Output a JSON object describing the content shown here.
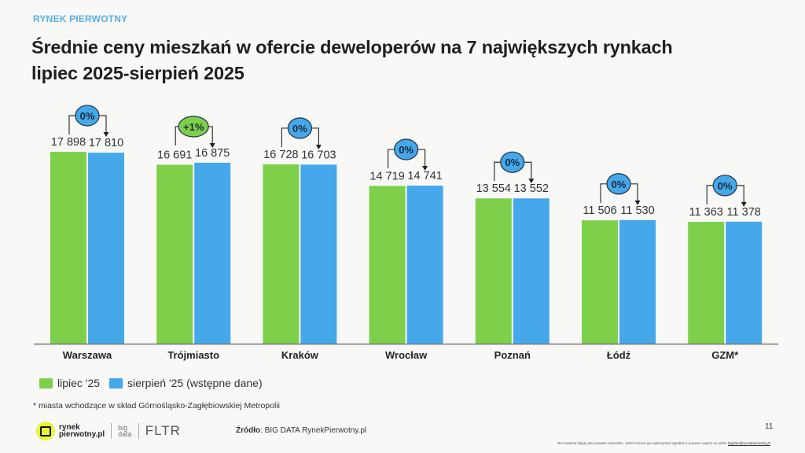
{
  "header": {
    "kicker": "RYNEK PIERWOTNY",
    "title_line1": "Średnie ceny mieszkań w ofercie deweloperów na 7 największych rynkach",
    "title_line2": "lipiec 2025-sierpień 2025"
  },
  "chart_data": {
    "type": "bar",
    "title": "Średnie ceny mieszkań w ofercie deweloperów na 7 największych rynkach lipiec 2025-sierpień 2025",
    "xlabel": "",
    "ylabel": "",
    "ylim": [
      0,
      18000
    ],
    "grid": false,
    "legend_position": "bottom-left",
    "categories": [
      "Warszawa",
      "Trójmiasto",
      "Kraków",
      "Wrocław",
      "Poznań",
      "Łódź",
      "GZM*"
    ],
    "series": [
      {
        "name": "lipiec '25",
        "color": "#7ed04b",
        "values": [
          17898,
          16691,
          16728,
          14719,
          13554,
          11506,
          11363
        ],
        "labels": [
          "17 898",
          "16 691",
          "16 728",
          "14 719",
          "13 554",
          "11 506",
          "11 363"
        ]
      },
      {
        "name": "sierpień '25 (wstępne dane)",
        "color": "#44a8ea",
        "values": [
          17810,
          16875,
          16703,
          14741,
          13552,
          11530,
          11378
        ],
        "labels": [
          "17 810",
          "16 875",
          "16 703",
          "14 741",
          "13 552",
          "11 530",
          "11 378"
        ]
      }
    ],
    "changes": [
      {
        "label": "0%",
        "color": "#44a8ea"
      },
      {
        "label": "+1%",
        "color": "#7ed04b"
      },
      {
        "label": "0%",
        "color": "#44a8ea"
      },
      {
        "label": "0%",
        "color": "#44a8ea"
      },
      {
        "label": "0%",
        "color": "#44a8ea"
      },
      {
        "label": "0%",
        "color": "#44a8ea"
      },
      {
        "label": "0%",
        "color": "#44a8ea"
      }
    ]
  },
  "legend": {
    "items": [
      {
        "label": "lipiec '25",
        "color": "#7ed04b"
      },
      {
        "label": "sierpień '25 (wstępne dane)",
        "color": "#44a8ea"
      }
    ]
  },
  "footnote": "* miasta wchodzące w skład Górnośląsko-Zagłębiowskiej Metropolii",
  "footer": {
    "logo_line1": "rynek",
    "logo_line2": "pierwotny.pl",
    "bigdata_line1": "big",
    "bigdata_line2": "data",
    "fltr": "FLTR",
    "source_label": "Źródło",
    "source_value": ": BIG DATA RynekPierwotny.pl",
    "page_number": "11",
    "disclaimer": "Ten materiał objęty jest prawem autorskim. Jeżeli chcesz go wykorzystać zgodnie z prawem napisz na adres ",
    "disclaimer_email": "bigdata@rynekpierwotny.pl"
  }
}
